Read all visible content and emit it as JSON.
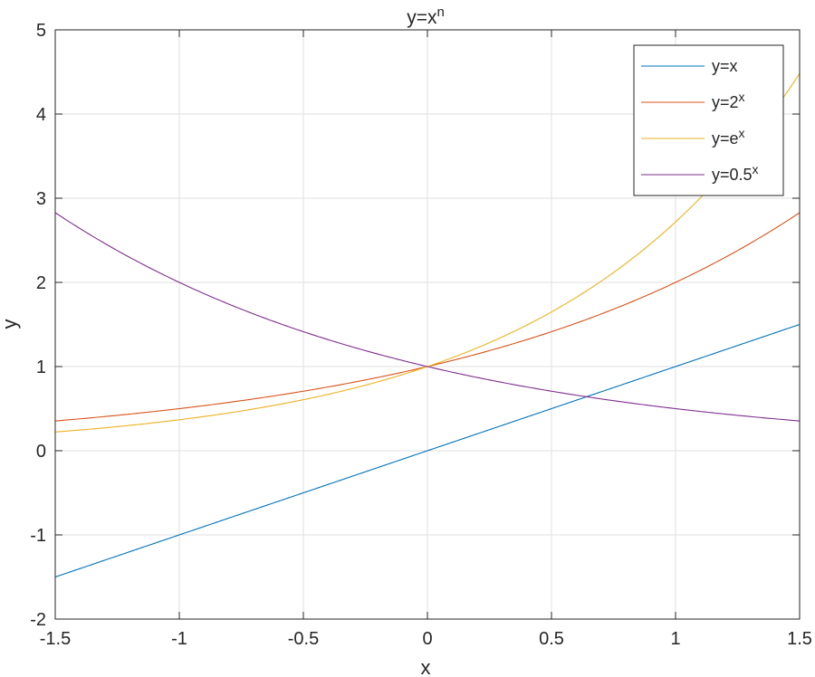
{
  "chart_data": {
    "type": "line",
    "title": {
      "base": "y=x",
      "sup": "n"
    },
    "xlabel": "x",
    "ylabel": "y",
    "xlim": [
      -1.5,
      1.5
    ],
    "ylim": [
      -2,
      5
    ],
    "xticks": [
      -1.5,
      -1,
      -0.5,
      0,
      0.5,
      1,
      1.5
    ],
    "xtick_labels": [
      "-1.5",
      "-1",
      "-0.5",
      "0",
      "0.5",
      "1",
      "1.5"
    ],
    "yticks": [
      -2,
      -1,
      0,
      1,
      2,
      3,
      4,
      5
    ],
    "ytick_labels": [
      "-2",
      "-1",
      "0",
      "1",
      "2",
      "3",
      "4",
      "5"
    ],
    "grid": true,
    "legend_position": "top-right",
    "series": [
      {
        "label_base": "y=x",
        "label_sup": "",
        "color": "#0072BD",
        "function": "x",
        "x": [
          -1.5,
          -1,
          -0.5,
          0,
          0.5,
          1,
          1.5
        ],
        "y": [
          -1.5,
          -1,
          -0.5,
          0,
          0.5,
          1,
          1.5
        ]
      },
      {
        "label_base": "y=2",
        "label_sup": "x",
        "color": "#D95319",
        "function": "2^x",
        "x": [
          -1.5,
          -1,
          -0.5,
          0,
          0.5,
          1,
          1.5
        ],
        "y": [
          0.354,
          0.5,
          0.707,
          1,
          1.414,
          2,
          2.828
        ]
      },
      {
        "label_base": "y=e",
        "label_sup": "x",
        "color": "#EDB120",
        "function": "e^x",
        "x": [
          -1.5,
          -1,
          -0.5,
          0,
          0.5,
          1,
          1.5
        ],
        "y": [
          0.223,
          0.368,
          0.607,
          1,
          1.649,
          2.718,
          4.482
        ]
      },
      {
        "label_base": "y=0.5",
        "label_sup": "x",
        "color": "#7E2F8E",
        "function": "0.5^x",
        "x": [
          -1.5,
          -1,
          -0.5,
          0,
          0.5,
          1,
          1.5
        ],
        "y": [
          2.828,
          2,
          1.414,
          1,
          0.707,
          0.5,
          0.354
        ]
      }
    ]
  }
}
